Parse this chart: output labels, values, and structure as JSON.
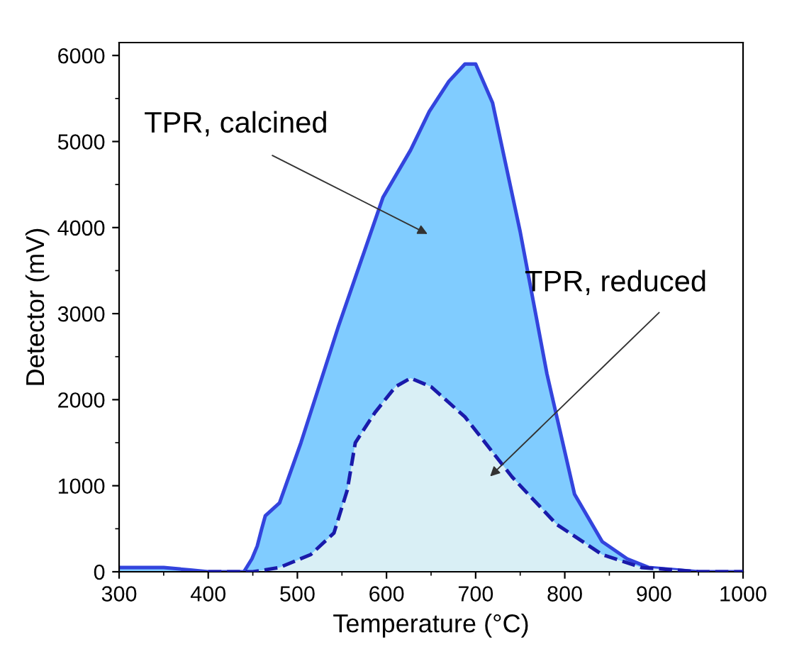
{
  "chart_data": {
    "type": "area",
    "xlabel": "Temperature (°C)",
    "ylabel": "Detector (mV)",
    "xlim": [
      300,
      1000
    ],
    "ylim": [
      0,
      6150
    ],
    "xticks": [
      300,
      400,
      500,
      600,
      700,
      800,
      900,
      1000
    ],
    "yticks": [
      0,
      1000,
      2000,
      3000,
      4000,
      5000,
      6000
    ],
    "grid": false,
    "legend": false,
    "series": [
      {
        "color": "#80ccff",
        "line_style": "solid",
        "x": [
          300,
          350,
          380,
          400,
          440,
          449,
          455,
          460,
          464,
          480,
          504,
          546,
          596,
          627,
          648,
          670,
          688,
          700,
          719,
          750,
          780,
          811,
          842,
          870,
          894,
          950,
          1000
        ],
        "values": [
          50,
          50,
          20,
          0,
          0,
          150,
          300,
          500,
          650,
          800,
          1500,
          2850,
          4350,
          4900,
          5350,
          5700,
          5900,
          5900,
          5450,
          3950,
          2300,
          900,
          350,
          150,
          50,
          0,
          0
        ]
      },
      {
        "color": "#d9eff5",
        "line_style": "dashed",
        "x": [
          400,
          450,
          480,
          515,
          541,
          556,
          565,
          587,
          610,
          627,
          650,
          688,
          741,
          791,
          842,
          886,
          950,
          1000
        ],
        "values": [
          0,
          0,
          50,
          200,
          450,
          950,
          1500,
          1850,
          2150,
          2250,
          2150,
          1800,
          1100,
          550,
          200,
          50,
          0,
          0
        ]
      }
    ],
    "annotations": [
      "TPR, calcined",
      "TPR, reduced"
    ]
  }
}
